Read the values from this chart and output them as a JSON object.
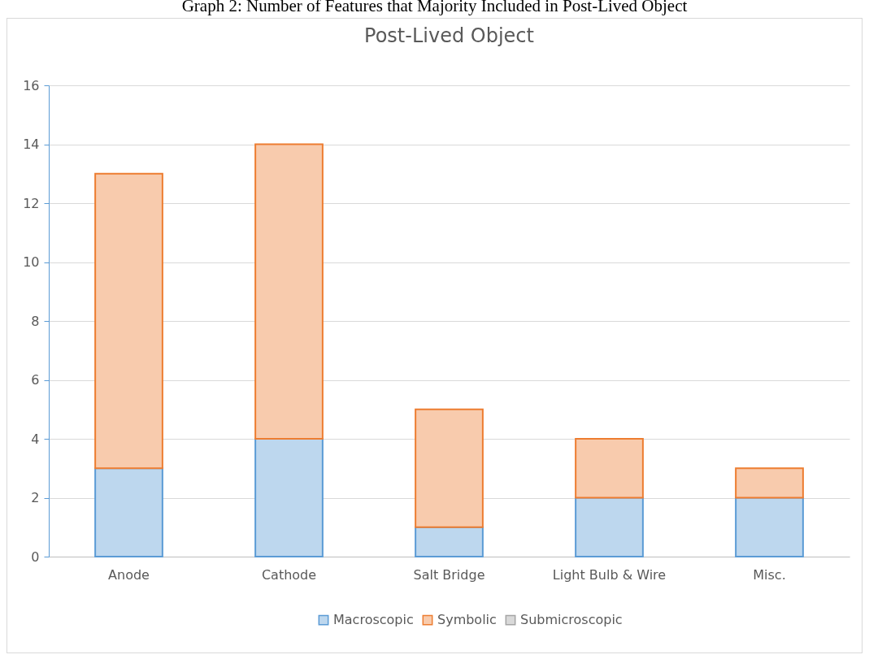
{
  "chart_data": {
    "type": "bar",
    "title": "Post-Lived Object",
    "annotations": [
      "Graph 2: Number of Features that Majority Included in Post-Lived Object"
    ],
    "categories": [
      "Anode",
      "Cathode",
      "Salt Bridge",
      "Light Bulb & Wire",
      "Misc."
    ],
    "stacked": true,
    "series": [
      {
        "name": "Macroscopic",
        "color": "#bdd7ee",
        "values": [
          3,
          4,
          1,
          2,
          2
        ]
      },
      {
        "name": "Symbolic",
        "color": "#f8cbad",
        "values": [
          10,
          10,
          4,
          2,
          1
        ]
      },
      {
        "name": "Submicroscopic",
        "color": "#d9d9d9",
        "values": [
          0,
          0,
          0,
          0,
          0
        ]
      }
    ],
    "ylim": [
      0,
      16
    ],
    "yticks": [
      0,
      2,
      4,
      6,
      8,
      10,
      12,
      14,
      16
    ],
    "grid": "y",
    "legend": "bottom"
  }
}
